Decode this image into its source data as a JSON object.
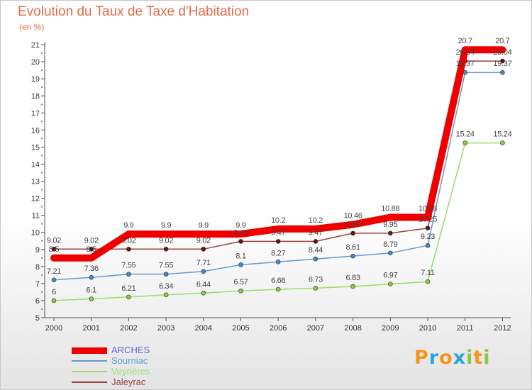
{
  "header": {
    "title": "Evolution du Taux de Taxe d'Habitation",
    "subtitle": "(en %)"
  },
  "logo": {
    "letters": [
      "P",
      "r",
      "o",
      "x",
      "i",
      "t",
      "i"
    ],
    "colors": [
      "#f7941d",
      "#2aa6dc",
      "#f7941d",
      "#2aa6dc",
      "#8dc63f",
      "#f7941d",
      "#8dc63f"
    ]
  },
  "colors": {
    "title": "#e46a4a",
    "axis": "#555555",
    "tick_label": "#333333",
    "value_label": "#444444"
  },
  "chart_data": {
    "type": "line",
    "title": "Evolution du Taux de Taxe d'Habitation",
    "ylabel": "(en %)",
    "xlabel": "",
    "ylim": [
      5,
      21
    ],
    "y_ticks": [
      5,
      6,
      7,
      8,
      9,
      10,
      11,
      12,
      13,
      14,
      15,
      16,
      17,
      18,
      19,
      20,
      21
    ],
    "x": [
      "2000",
      "2001",
      "2002",
      "2003",
      "2004",
      "2005",
      "2006",
      "2007",
      "2008",
      "2009",
      "2010",
      "2011",
      "2012"
    ],
    "grid": false,
    "legend_position": "bottom-left",
    "series": [
      {
        "name": "ARCHES",
        "color": "#ee0000",
        "legend_color": "#6666dd",
        "style": "thick",
        "values": [
          8.5,
          8.5,
          9.9,
          9.9,
          9.9,
          9.9,
          10.2,
          10.2,
          10.46,
          10.88,
          10.88,
          20.7,
          20.7
        ],
        "labels": [
          "8.5",
          "8.5",
          "9.9",
          "9.9",
          "9.9",
          "9.9",
          "10.2",
          "10.2",
          "10.46",
          "10.88",
          "10.88",
          "20.7",
          "20.7"
        ]
      },
      {
        "name": "Sourniac",
        "color": "#6699cc",
        "marker": "#4488cc",
        "legend_color": "#6699cc",
        "values": [
          7.21,
          7.36,
          7.55,
          7.55,
          7.71,
          8.1,
          8.27,
          8.44,
          8.61,
          8.79,
          9.23,
          19.37,
          19.37
        ],
        "labels": [
          "7.21",
          "7.36",
          "7.55",
          "7.55",
          "7.71",
          "8.1",
          "8.27",
          "8.44",
          "8.61",
          "8.79",
          "9.23",
          "19.37",
          "19.37"
        ]
      },
      {
        "name": "Veyrières",
        "color": "#99dd66",
        "marker": "#88cc44",
        "legend_color": "#99dd66",
        "values": [
          6,
          6.1,
          6.21,
          6.34,
          6.44,
          6.57,
          6.66,
          6.73,
          6.83,
          6.97,
          7.11,
          15.24,
          15.24
        ],
        "labels": [
          "6",
          "6.1",
          "6.21",
          "6.34",
          "6.44",
          "6.57",
          "6.66",
          "6.73",
          "6.83",
          "6.97",
          "7.11",
          "15.24",
          "15.24"
        ]
      },
      {
        "name": "Jaleyrac",
        "color": "#994444",
        "marker": "#661111",
        "legend_color": "#994444",
        "values": [
          9.02,
          9.02,
          9.02,
          9.02,
          9.02,
          9.47,
          9.47,
          9.47,
          9.95,
          9.95,
          10.25,
          20.04,
          20.04
        ],
        "labels": [
          "9.02",
          "9.02",
          "9.02",
          "9.02",
          "9.02",
          "9.47",
          "9.47",
          "9.47",
          "9.95",
          "9.95",
          "10.25",
          "20.04",
          "20.04"
        ]
      }
    ]
  }
}
